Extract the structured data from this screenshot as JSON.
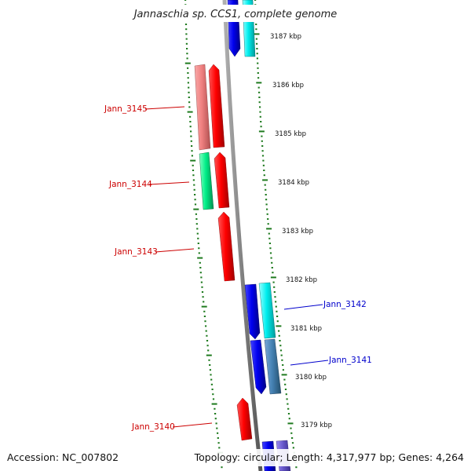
{
  "title": "Jannaschia sp. CCS1, complete genome",
  "footer": {
    "accession": "Accession: NC_007802",
    "topology": "Topology: circular; Length: 4,317,977 bp; Genes: 4,264"
  },
  "kbp_labels": [
    "3187 kbp",
    "3186 kbp",
    "3185 kbp",
    "3184 kbp",
    "3183 kbp",
    "3182 kbp",
    "3181 kbp",
    "3180 kbp",
    "3179 kbp"
  ],
  "gene_labels": [
    {
      "name": "Jann_3145",
      "color": "#cc0000"
    },
    {
      "name": "Jann_3144",
      "color": "#cc0000"
    },
    {
      "name": "Jann_3143",
      "color": "#cc0000"
    },
    {
      "name": "Jann_3142",
      "color": "#0000cc"
    },
    {
      "name": "Jann_3141",
      "color": "#0000cc"
    },
    {
      "name": "Jann_3140",
      "color": "#cc0000"
    }
  ],
  "colors": {
    "tick_green": "#1e7a1e",
    "backbone": "#888888",
    "red": "#ff0000",
    "salmon": "#f08080",
    "spring_green": "#00ee88",
    "blue": "#0000ee",
    "cyan": "#00eeee",
    "steel_blue": "#4682b4",
    "slate_blue": "#6a5acd"
  }
}
